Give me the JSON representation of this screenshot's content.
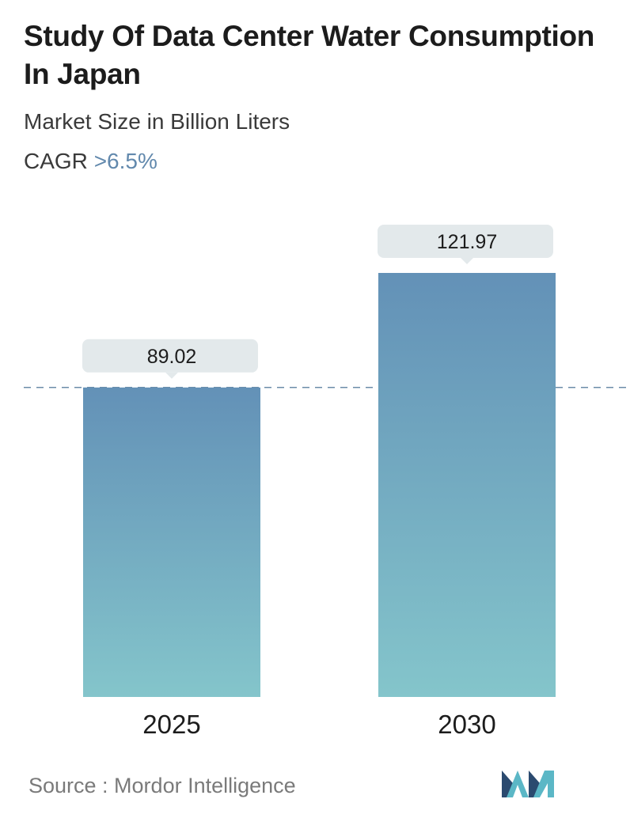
{
  "title": "Study Of Data Center Water Consumption In Japan",
  "subtitle": "Market Size in Billion Liters",
  "cagr": {
    "label": "CAGR",
    "value": ">6.5%"
  },
  "source": "Source :  Mordor Intelligence",
  "colors": {
    "bar_top": "#6391b7",
    "bar_bottom": "#84c5cb",
    "label_bg": "#e3e9eb",
    "reference_line": "#6b8ca8",
    "cagr_accent": "#6289ad",
    "logo_dark": "#2b4a6f",
    "logo_light": "#5bb7c6"
  },
  "chart_data": {
    "type": "bar",
    "categories": [
      "2025",
      "2030"
    ],
    "values": [
      89.02,
      121.97
    ],
    "value_labels": [
      "89.02",
      "121.97"
    ],
    "ylabel": "Market Size in Billion Liters",
    "reference_line": "dashed line at the 2025 value",
    "grid": false,
    "legend": "none"
  }
}
